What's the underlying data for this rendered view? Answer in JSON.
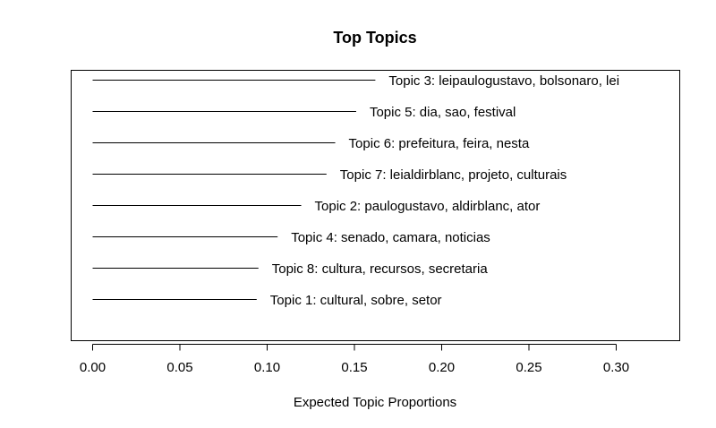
{
  "chart_data": {
    "type": "bar",
    "orientation": "horizontal",
    "title": "Top Topics",
    "xlabel": "Expected Topic Proportions",
    "ylabel": "",
    "xlim": [
      0,
      0.3
    ],
    "xticks": [
      "0.00",
      "0.05",
      "0.10",
      "0.15",
      "0.20",
      "0.25",
      "0.30"
    ],
    "grid": false,
    "categories": [
      "Topic 3: leipaulogustavo, bolsonaro, lei",
      "Topic 5: dia, sao, festival",
      "Topic 6: prefeitura, feira, nesta",
      "Topic 7: leialdirblanc, projeto, culturais",
      "Topic 2: paulogustavo, aldirblanc, ator",
      "Topic 4: senado, camara, noticias",
      "Topic 8: cultura, recursos, secretaria",
      "Topic 1: cultural, sobre, setor"
    ],
    "values": [
      0.162,
      0.151,
      0.139,
      0.134,
      0.1195,
      0.106,
      0.095,
      0.094
    ]
  }
}
